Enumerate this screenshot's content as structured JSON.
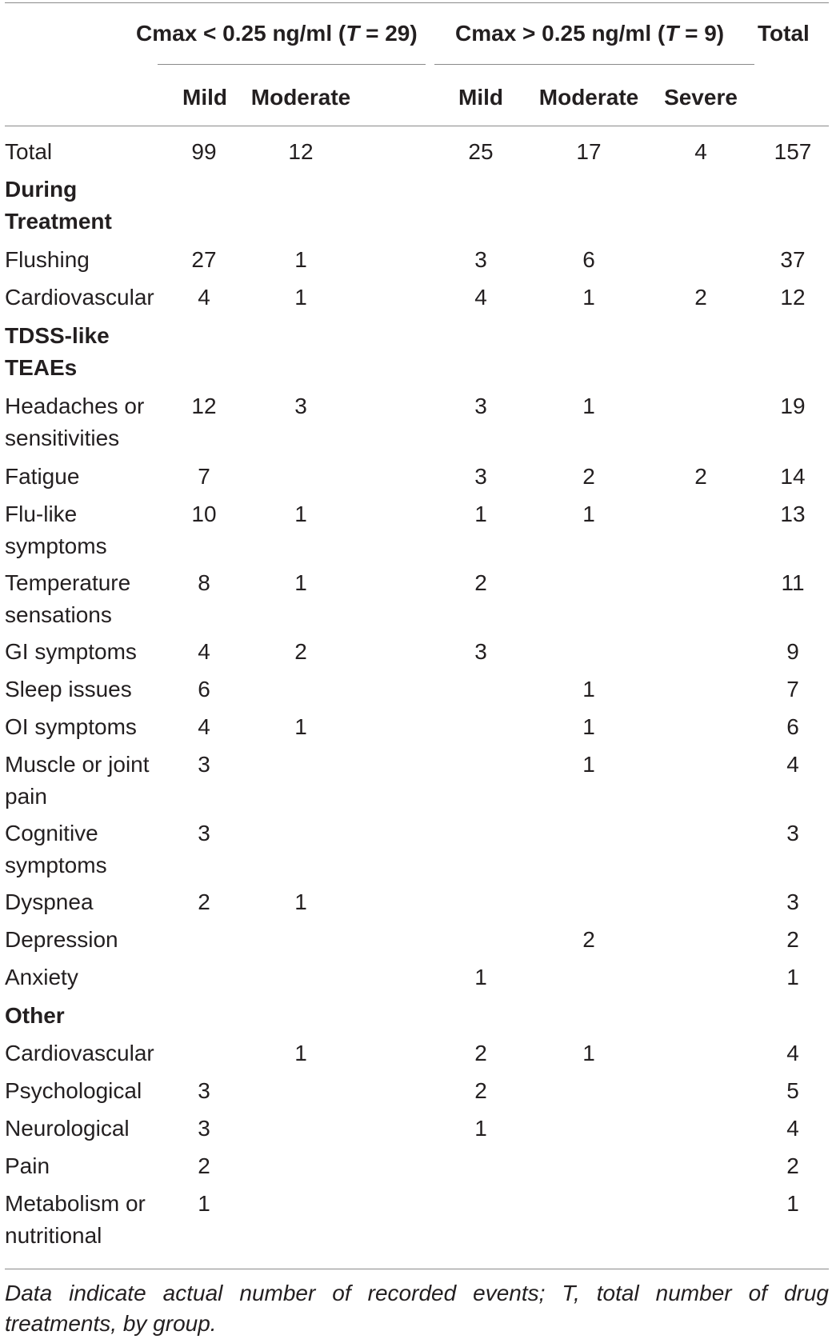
{
  "header": {
    "group1": "Cmax < 0.25 ng/ml (T = 29)",
    "group1_parts": [
      "Cmax < 0.25 ng/ml (",
      "T",
      " = 29)"
    ],
    "group2_parts": [
      "Cmax > 0.25 ng/ml (",
      "T",
      " = 9)"
    ],
    "total": "Total",
    "sub": [
      "Mild",
      "Moderate",
      "Mild",
      "Moderate",
      "Severe"
    ]
  },
  "rows": [
    {
      "label": "Total",
      "bold": false,
      "values": [
        "99",
        "12",
        "25",
        "17",
        "4",
        "157"
      ]
    },
    {
      "label": "During Treatment",
      "bold": true,
      "values": [
        "",
        "",
        "",
        "",
        "",
        ""
      ]
    },
    {
      "label": "Flushing",
      "bold": false,
      "values": [
        "27",
        "1",
        "3",
        "6",
        "",
        "37"
      ]
    },
    {
      "label": "Cardiovascular",
      "bold": false,
      "values": [
        "4",
        "1",
        "4",
        "1",
        "2",
        "12"
      ]
    },
    {
      "label": "TDSS-like TEAEs",
      "bold": true,
      "values": [
        "",
        "",
        "",
        "",
        "",
        ""
      ]
    },
    {
      "label": "Headaches or sensitivities",
      "bold": false,
      "values": [
        "12",
        "3",
        "3",
        "1",
        "",
        "19"
      ]
    },
    {
      "label": "Fatigue",
      "bold": false,
      "values": [
        "7",
        "",
        "3",
        "2",
        "2",
        "14"
      ]
    },
    {
      "label": "Flu-like symptoms",
      "bold": false,
      "values": [
        "10",
        "1",
        "1",
        "1",
        "",
        "13"
      ]
    },
    {
      "label": "Temperature sensations",
      "bold": false,
      "values": [
        "8",
        "1",
        "2",
        "",
        "",
        "11"
      ]
    },
    {
      "label": "GI symptoms",
      "bold": false,
      "values": [
        "4",
        "2",
        "3",
        "",
        "",
        "9"
      ]
    },
    {
      "label": "Sleep issues",
      "bold": false,
      "values": [
        "6",
        "",
        "",
        "1",
        "",
        "7"
      ]
    },
    {
      "label": "OI symptoms",
      "bold": false,
      "values": [
        "4",
        "1",
        "",
        "1",
        "",
        "6"
      ]
    },
    {
      "label": "Muscle or joint pain",
      "bold": false,
      "values": [
        "3",
        "",
        "",
        "1",
        "",
        "4"
      ]
    },
    {
      "label": "Cognitive symptoms",
      "bold": false,
      "values": [
        "3",
        "",
        "",
        "",
        "",
        "3"
      ]
    },
    {
      "label": "Dyspnea",
      "bold": false,
      "values": [
        "2",
        "1",
        "",
        "",
        "",
        "3"
      ]
    },
    {
      "label": "Depression",
      "bold": false,
      "values": [
        "",
        "",
        "",
        "2",
        "",
        "2"
      ]
    },
    {
      "label": "Anxiety",
      "bold": false,
      "values": [
        "",
        "",
        "1",
        "",
        "",
        "1"
      ]
    },
    {
      "label": "Other",
      "bold": true,
      "values": [
        "",
        "",
        "",
        "",
        "",
        ""
      ]
    },
    {
      "label": "Cardiovascular",
      "bold": false,
      "values": [
        "",
        "1",
        "2",
        "1",
        "",
        "4"
      ]
    },
    {
      "label": "Psychological",
      "bold": false,
      "values": [
        "3",
        "",
        "2",
        "",
        "",
        "5"
      ]
    },
    {
      "label": "Neurological",
      "bold": false,
      "values": [
        "3",
        "",
        "1",
        "",
        "",
        "4"
      ]
    },
    {
      "label": "Pain",
      "bold": false,
      "values": [
        "2",
        "",
        "",
        "",
        "",
        "2"
      ]
    },
    {
      "label": "Metabolism or nutritional",
      "bold": false,
      "values": [
        "1",
        "",
        "",
        "",
        "",
        "1"
      ]
    }
  ],
  "caption": "Data indicate actual number of recorded events; T, total number of drug treatments, by group."
}
